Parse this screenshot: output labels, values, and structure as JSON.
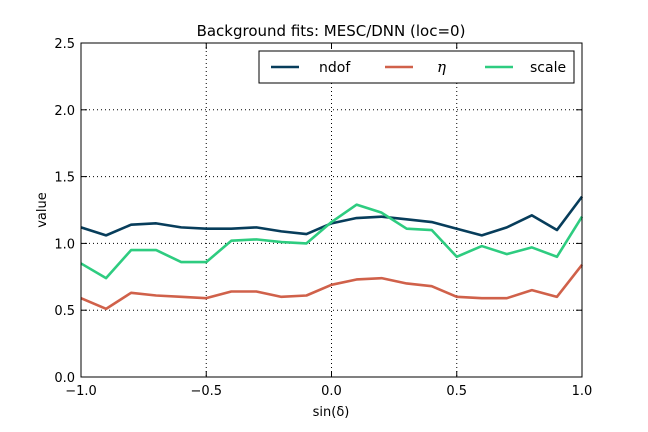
{
  "chart_data": {
    "type": "line",
    "title": "Background fits: MESC/DNN (loc=0)",
    "xlabel": "sin(δ)",
    "ylabel": "value",
    "xlim": [
      -1.0,
      1.0
    ],
    "ylim": [
      0.0,
      2.5
    ],
    "xticks": [
      "−1.0",
      "−0.5",
      "0.0",
      "0.5",
      "1.0"
    ],
    "yticks": [
      "0.0",
      "0.5",
      "1.0",
      "1.5",
      "2.0",
      "2.5"
    ],
    "grid": true,
    "legend_position": "top-right",
    "x": [
      -1.0,
      -0.9,
      -0.8,
      -0.7,
      -0.6,
      -0.5,
      -0.4,
      -0.3,
      -0.2,
      -0.1,
      0.0,
      0.1,
      0.2,
      0.3,
      0.4,
      0.5,
      0.6,
      0.7,
      0.8,
      0.9,
      1.0
    ],
    "series": [
      {
        "name": "ndof",
        "color": "#073d5b",
        "values": [
          1.12,
          1.06,
          1.14,
          1.15,
          1.12,
          1.11,
          1.11,
          1.12,
          1.09,
          1.07,
          1.15,
          1.19,
          1.2,
          1.18,
          1.16,
          1.11,
          1.06,
          1.12,
          1.21,
          1.1,
          1.35
        ]
      },
      {
        "name": "η",
        "color": "#d0614a",
        "values": [
          0.59,
          0.51,
          0.63,
          0.61,
          0.6,
          0.59,
          0.64,
          0.64,
          0.6,
          0.61,
          0.69,
          0.73,
          0.74,
          0.7,
          0.68,
          0.6,
          0.59,
          0.59,
          0.65,
          0.6,
          0.84
        ]
      },
      {
        "name": "scale",
        "color": "#2ecc80",
        "values": [
          0.85,
          0.74,
          0.95,
          0.95,
          0.86,
          0.86,
          1.02,
          1.03,
          1.01,
          1.0,
          1.16,
          1.29,
          1.23,
          1.11,
          1.1,
          0.9,
          0.98,
          0.92,
          0.97,
          0.9,
          1.2
        ]
      }
    ]
  }
}
